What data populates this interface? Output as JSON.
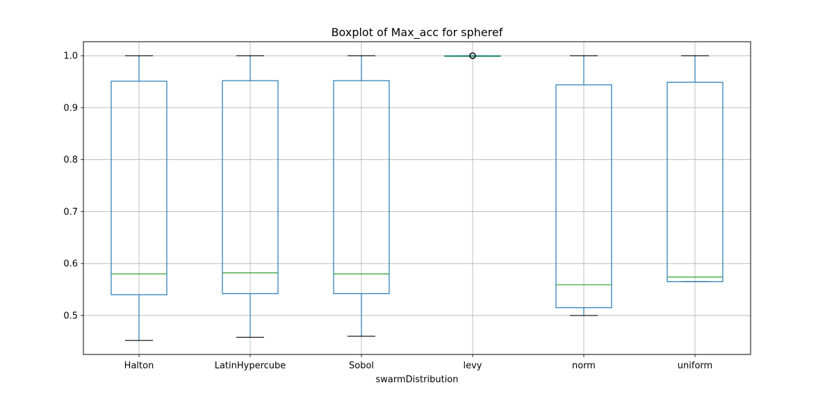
{
  "chart_data": {
    "type": "box",
    "title": "Boxplot of Max_acc for spheref",
    "xlabel": "swarmDistribution",
    "ylabel": "",
    "ylim": [
      0.425,
      1.027
    ],
    "yticks": [
      0.5,
      0.6,
      0.7,
      0.8,
      0.9,
      1.0
    ],
    "ytick_labels": [
      "0.5",
      "0.6",
      "0.7",
      "0.8",
      "0.9",
      "1.0"
    ],
    "grid": true,
    "colors": {
      "box": "#1f77b4",
      "median": "#2ca02c",
      "whisker_cap": "#000000",
      "grid": "#b0b0b0"
    },
    "categories": [
      "Halton",
      "LatinHypercube",
      "Sobol",
      "levy",
      "norm",
      "uniform"
    ],
    "boxes": [
      {
        "category": "Halton",
        "whislo": 0.452,
        "q1": 0.54,
        "med": 0.58,
        "q3": 0.951,
        "whishi": 1.0,
        "fliers": []
      },
      {
        "category": "LatinHypercube",
        "whislo": 0.458,
        "q1": 0.542,
        "med": 0.582,
        "q3": 0.952,
        "whishi": 1.0,
        "fliers": []
      },
      {
        "category": "Sobol",
        "whislo": 0.46,
        "q1": 0.542,
        "med": 0.58,
        "q3": 0.952,
        "whishi": 1.0,
        "fliers": []
      },
      {
        "category": "levy",
        "whislo": 0.999,
        "q1": 0.999,
        "med": 0.999,
        "q3": 1.0,
        "whishi": 1.0,
        "fliers": [
          1.0,
          1.0
        ]
      },
      {
        "category": "norm",
        "whislo": 0.5,
        "q1": 0.515,
        "med": 0.559,
        "q3": 0.944,
        "whishi": 1.0,
        "fliers": []
      },
      {
        "category": "uniform",
        "whislo": 0.565,
        "q1": 0.565,
        "med": 0.574,
        "q3": 0.949,
        "whishi": 1.0,
        "fliers": []
      }
    ]
  }
}
